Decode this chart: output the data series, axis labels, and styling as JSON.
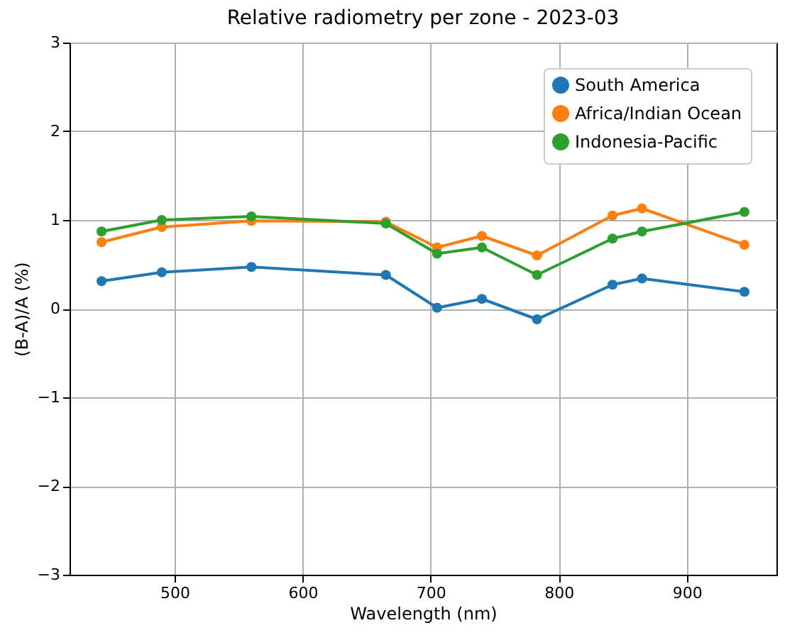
{
  "chart_data": {
    "type": "line",
    "title": "Relative radiometry per zone - 2023-03",
    "xlabel": "Wavelength (nm)",
    "ylabel": "(B-A)/A (%)",
    "x": [
      443,
      490,
      560,
      665,
      705,
      740,
      783,
      842,
      865,
      945
    ],
    "series": [
      {
        "name": "South America",
        "color": "#1f77b4",
        "values": [
          0.31,
          0.41,
          0.47,
          0.38,
          0.01,
          0.11,
          -0.12,
          0.27,
          0.34,
          0.19
        ]
      },
      {
        "name": "Africa/Indian Ocean",
        "color": "#ff7f0e",
        "values": [
          0.75,
          0.92,
          0.99,
          0.98,
          0.69,
          0.82,
          0.6,
          1.05,
          1.13,
          0.72
        ]
      },
      {
        "name": "Indonesia-Pacific",
        "color": "#2ca02c",
        "values": [
          0.87,
          1.0,
          1.04,
          0.96,
          0.62,
          0.69,
          0.38,
          0.79,
          0.87,
          1.09
        ]
      }
    ],
    "xlim": [
      418,
      970
    ],
    "xticks": [
      500,
      600,
      700,
      800,
      900
    ],
    "ylim": [
      -3,
      3
    ],
    "yticks": [
      -3,
      -2,
      -1,
      0,
      1,
      2,
      3
    ],
    "grid": true,
    "legend": "top right",
    "marker": "circle",
    "line_style": "solid"
  }
}
